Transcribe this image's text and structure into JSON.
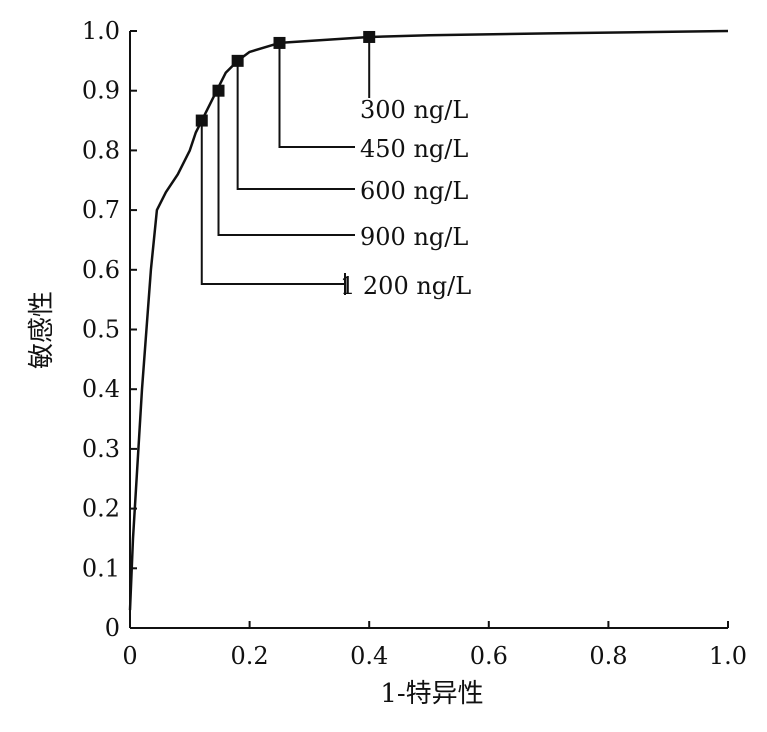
{
  "chart_data": {
    "type": "line",
    "xlabel": "1-特异性",
    "ylabel": "敏感性",
    "xlim": [
      0,
      1.0
    ],
    "ylim": [
      0,
      1.0
    ],
    "x_ticks": [
      {
        "value": 0,
        "label": "0"
      },
      {
        "value": 0.2,
        "label": "0.2"
      },
      {
        "value": 0.4,
        "label": "0.4"
      },
      {
        "value": 0.6,
        "label": "0.6"
      },
      {
        "value": 0.8,
        "label": "0.8"
      },
      {
        "value": 1.0,
        "label": "1.0"
      }
    ],
    "y_ticks": [
      {
        "value": 0,
        "label": "0"
      },
      {
        "value": 0.1,
        "label": "0.1"
      },
      {
        "value": 0.2,
        "label": "0.2"
      },
      {
        "value": 0.3,
        "label": "0.3"
      },
      {
        "value": 0.4,
        "label": "0.4"
      },
      {
        "value": 0.5,
        "label": "0.5"
      },
      {
        "value": 0.6,
        "label": "0.6"
      },
      {
        "value": 0.7,
        "label": "0.7"
      },
      {
        "value": 0.8,
        "label": "0.8"
      },
      {
        "value": 0.9,
        "label": "0.9"
      },
      {
        "value": 1.0,
        "label": "1.0"
      }
    ],
    "grid": false,
    "series": [
      {
        "x": [
          0,
          0.005,
          0.02,
          0.035,
          0.045,
          0.06,
          0.08,
          0.1,
          0.11,
          0.12,
          0.145,
          0.16,
          0.18,
          0.2,
          0.25,
          0.4,
          0.5,
          0.7,
          1.0
        ],
        "y": [
          0.03,
          0.15,
          0.4,
          0.6,
          0.7,
          0.73,
          0.76,
          0.8,
          0.83,
          0.85,
          0.9,
          0.93,
          0.95,
          0.965,
          0.98,
          0.99,
          0.993,
          0.996,
          1.0
        ]
      }
    ],
    "points": [
      {
        "x": 0.12,
        "y": 0.85,
        "label": "1 200 ng/L"
      },
      {
        "x": 0.148,
        "y": 0.9,
        "label": "900 ng/L"
      },
      {
        "x": 0.18,
        "y": 0.95,
        "label": "600 ng/L"
      },
      {
        "x": 0.25,
        "y": 0.98,
        "label": "450 ng/L"
      },
      {
        "x": 0.4,
        "y": 0.99,
        "label": "300 ng/L"
      }
    ]
  }
}
